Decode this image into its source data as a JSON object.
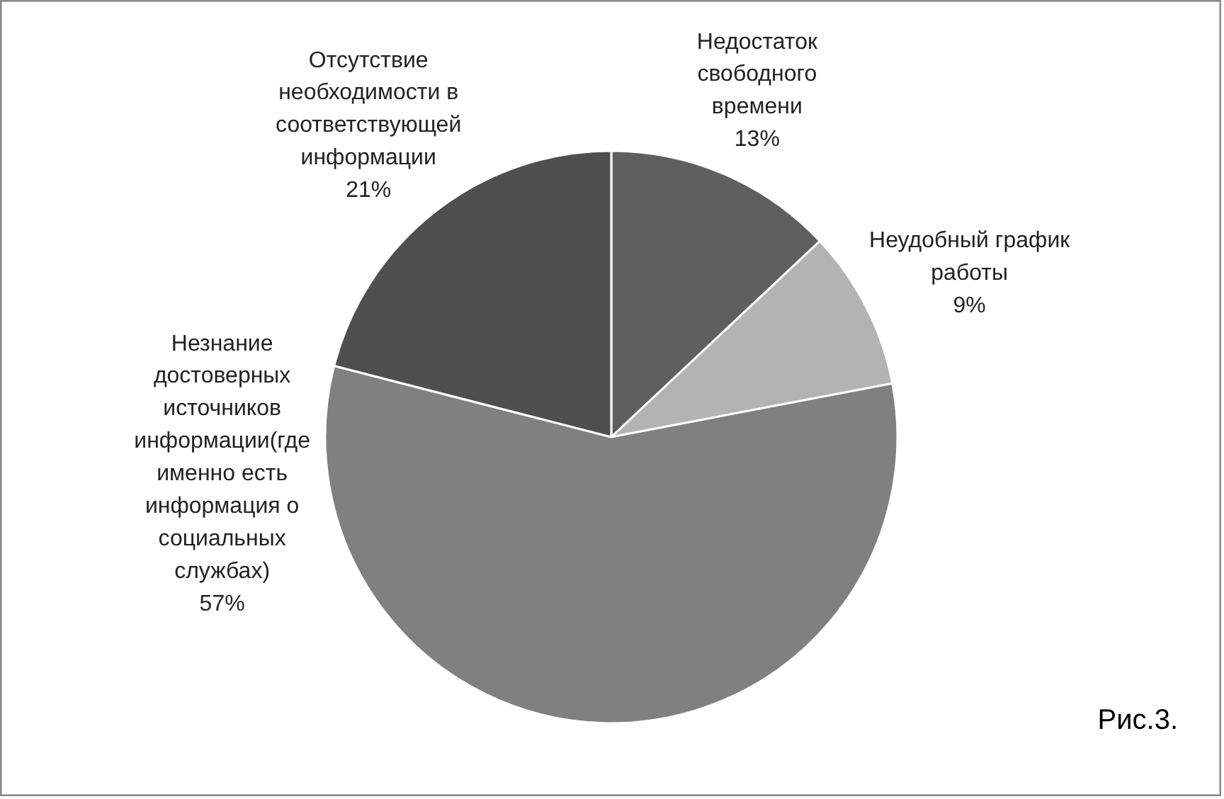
{
  "chart_data": {
    "type": "pie",
    "categories": [
      "Недостаток свободного времени",
      "Неудобный график работы",
      "Незнание достоверных источников информации(где именно есть информация о социальных службах)",
      "Отсутствие необходимости в соответствующей информации"
    ],
    "values": [
      13,
      9,
      57,
      21
    ],
    "colors": [
      "#5f5f5f",
      "#b3b3b3",
      "#808080",
      "#4f4f4f"
    ],
    "value_labels": [
      "13%",
      "9%",
      "57%",
      "21%"
    ],
    "annotations": [
      "Рис.3."
    ]
  }
}
